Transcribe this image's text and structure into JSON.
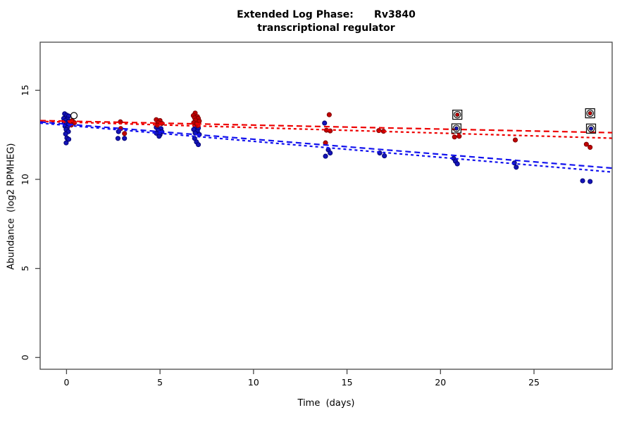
{
  "title": {
    "line1": "Extended Log Phase:      Rv3840",
    "line2": "transcriptional regulator"
  },
  "chart_data": {
    "type": "scatter",
    "title": "Extended Log Phase:      Rv3840",
    "subtitle": "transcriptional regulator",
    "xlabel": "Time  (days)",
    "ylabel": "Abundance  (log2 RPMHEG)",
    "xlim": [
      -1.41,
      29.18
    ],
    "ylim": [
      -0.66,
      17.7
    ],
    "x_ticks": [
      0,
      5,
      10,
      15,
      20,
      25
    ],
    "y_ticks": [
      0,
      5,
      10,
      15
    ],
    "grid": false,
    "legend": "none",
    "colors": {
      "point_red_fill": "#c00000",
      "point_red_stroke": "#7a0000",
      "point_blue_fill": "#1414b8",
      "point_blue_stroke": "#000070",
      "trend_red": "#ee0000",
      "trend_blue": "#1111ee",
      "axis": "#484848",
      "marker_outline": "#000000"
    },
    "series": [
      {
        "name": "red-condition-points",
        "color_key": "red",
        "points": [
          [
            0.3,
            13.3
          ],
          [
            0.42,
            13.18
          ],
          [
            0.25,
            13.05
          ],
          [
            2.88,
            13.23
          ],
          [
            2.9,
            12.85
          ],
          [
            3.1,
            12.57
          ],
          [
            4.8,
            13.35
          ],
          [
            5.0,
            13.3
          ],
          [
            4.9,
            13.18
          ],
          [
            5.1,
            13.14
          ],
          [
            4.85,
            13.04
          ],
          [
            6.88,
            13.72
          ],
          [
            6.78,
            13.58
          ],
          [
            7.0,
            13.52
          ],
          [
            6.85,
            13.45
          ],
          [
            7.05,
            13.42
          ],
          [
            6.9,
            13.32
          ],
          [
            7.1,
            13.27
          ],
          [
            6.8,
            13.18
          ],
          [
            6.95,
            13.12
          ],
          [
            7.02,
            13.02
          ],
          [
            14.05,
            13.63
          ],
          [
            13.9,
            12.76
          ],
          [
            14.1,
            12.72
          ],
          [
            13.85,
            12.05
          ],
          [
            16.7,
            12.74
          ],
          [
            16.95,
            12.7
          ],
          [
            20.75,
            12.38
          ],
          [
            21.0,
            12.42
          ],
          [
            24.0,
            12.21
          ],
          [
            27.8,
            11.97
          ],
          [
            28.0,
            11.8
          ]
        ]
      },
      {
        "name": "blue-condition-points",
        "color_key": "blue",
        "points": [
          [
            -0.1,
            13.68
          ],
          [
            0.02,
            13.6
          ],
          [
            0.12,
            13.55
          ],
          [
            -0.15,
            13.42
          ],
          [
            0.05,
            13.38
          ],
          [
            -0.05,
            13.3
          ],
          [
            0.1,
            13.24
          ],
          [
            -0.12,
            13.18
          ],
          [
            0.0,
            13.12
          ],
          [
            0.08,
            13.05
          ],
          [
            -0.08,
            12.98
          ],
          [
            0.04,
            12.9
          ],
          [
            -0.02,
            12.8
          ],
          [
            0.1,
            12.68
          ],
          [
            -0.05,
            12.55
          ],
          [
            0.02,
            12.32
          ],
          [
            0.12,
            12.25
          ],
          [
            -0.02,
            12.05
          ],
          [
            2.78,
            12.68
          ],
          [
            2.75,
            12.3
          ],
          [
            3.1,
            12.3
          ],
          [
            4.8,
            12.92
          ],
          [
            5.05,
            12.85
          ],
          [
            4.9,
            12.75
          ],
          [
            5.1,
            12.67
          ],
          [
            4.8,
            12.59
          ],
          [
            5.0,
            12.51
          ],
          [
            4.95,
            12.42
          ],
          [
            6.9,
            12.95
          ],
          [
            7.05,
            12.88
          ],
          [
            6.8,
            12.8
          ],
          [
            7.0,
            12.7
          ],
          [
            6.88,
            12.6
          ],
          [
            7.1,
            12.52
          ],
          [
            6.85,
            12.3
          ],
          [
            6.95,
            12.1
          ],
          [
            7.05,
            11.95
          ],
          [
            13.8,
            13.16
          ],
          [
            14.0,
            11.66
          ],
          [
            14.1,
            11.48
          ],
          [
            13.85,
            11.3
          ],
          [
            16.75,
            11.48
          ],
          [
            17.0,
            11.32
          ],
          [
            20.7,
            11.18
          ],
          [
            20.8,
            11.02
          ],
          [
            20.9,
            10.87
          ],
          [
            23.95,
            10.92
          ],
          [
            24.05,
            10.68
          ],
          [
            27.6,
            9.92
          ],
          [
            28.0,
            9.88
          ]
        ]
      }
    ],
    "marked_points": [
      {
        "x": 20.9,
        "y": 13.63,
        "color_key": "red"
      },
      {
        "x": 28.0,
        "y": 13.71,
        "color_key": "red"
      },
      {
        "x": 20.85,
        "y": 12.86,
        "color_key": "blue"
      },
      {
        "x": 28.05,
        "y": 12.85,
        "color_key": "blue"
      }
    ],
    "open_circle_points": [
      {
        "x": 0.4,
        "y": 13.58
      }
    ],
    "trend_lines": [
      {
        "name": "red-fit-dashed",
        "color_key": "red",
        "dash": "8 5",
        "y_start": 13.3,
        "y_end": 12.62
      },
      {
        "name": "red-fit-dotted",
        "color_key": "red",
        "dash": "4 4",
        "y_start": 13.26,
        "y_end": 12.31
      },
      {
        "name": "blue-fit-dashed",
        "color_key": "blue",
        "dash": "8 5",
        "y_start": 13.22,
        "y_end": 10.63
      },
      {
        "name": "blue-fit-dotted",
        "color_key": "blue",
        "dash": "4 4",
        "y_start": 13.16,
        "y_end": 10.41
      }
    ]
  }
}
